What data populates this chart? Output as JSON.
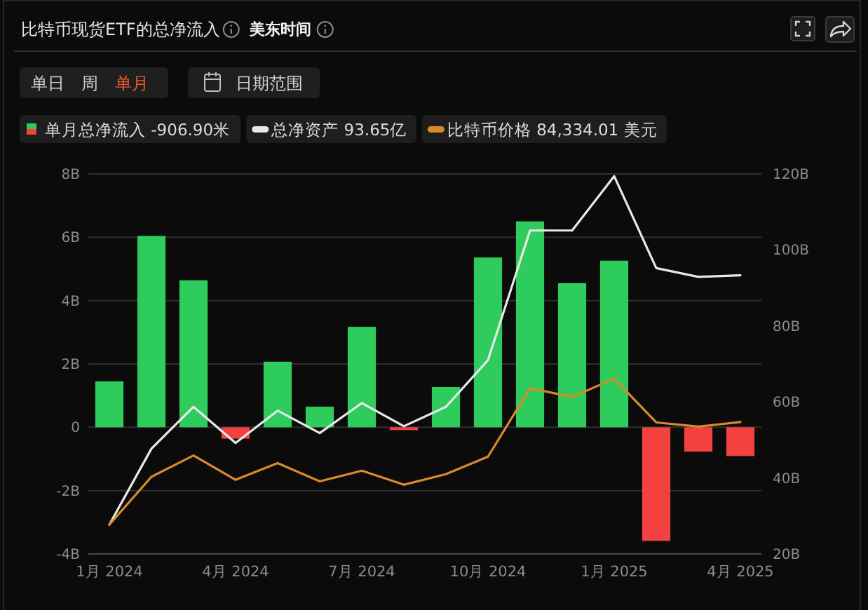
{
  "chart_data": {
    "type": "bar",
    "title": "比特币现货ETF的总净流入",
    "subtitle": "美东时间",
    "annotations": [
      "单日",
      "周",
      "单月",
      "日期范围"
    ],
    "categories": [
      "1月 2024",
      null,
      null,
      "4月 2024",
      null,
      null,
      "7月 2024",
      null,
      null,
      "10月 2024",
      null,
      null,
      "1月 2025",
      null,
      null,
      "4月 2025"
    ],
    "series": [
      {
        "name": "单月总净流入 -906.90米",
        "colors": [
          "#2ecc5c",
          "#2ecc5c",
          "#2ecc5c",
          "#f2413f",
          "#2ecc5c",
          "#2ecc5c",
          "#2ecc5c",
          "#f2413f",
          "#2ecc5c",
          "#2ecc5c",
          "#2ecc5c",
          "#2ecc5c",
          "#2ecc5c",
          "#f2413f",
          "#f2413f",
          "#f2413f"
        ],
        "values": [
          1.45,
          6.04,
          4.64,
          -0.36,
          2.07,
          0.65,
          3.17,
          -0.09,
          1.27,
          5.36,
          6.5,
          4.55,
          5.26,
          -3.59,
          -0.77,
          -0.91
        ]
      },
      {
        "name": "总净资产 93.65亿",
        "type": "line",
        "axis": "y2",
        "color": "#e8e8e8",
        "values": [
          27.7,
          47.7,
          58.7,
          49.2,
          57.7,
          51.8,
          59.7,
          53.6,
          58.7,
          71,
          105.1,
          105.1,
          119.4,
          95.2,
          92.9,
          93.3
        ]
      },
      {
        "name": "比特币价格 84,334.01 美元",
        "type": "line",
        "axis": "y2",
        "color": "#d98a2b",
        "values": [
          27.7,
          40.3,
          45.9,
          39.5,
          43.9,
          39.1,
          41.9,
          38.2,
          41,
          45.6,
          63.6,
          61.3,
          66.1,
          54.6,
          53.5,
          54.7
        ]
      }
    ],
    "ylim": [
      -4,
      8
    ],
    "yticks": [
      {
        "value": -4,
        "label": "-4B"
      },
      {
        "value": -2,
        "label": "-2B"
      },
      0,
      {
        "value": 2,
        "label": "2B"
      },
      {
        "value": 4,
        "label": "4B"
      },
      {
        "value": 6,
        "label": "6B"
      },
      {
        "value": 8,
        "label": "8B"
      }
    ],
    "y2lim": [
      20,
      120
    ],
    "y2ticks": [
      {
        "value": 20,
        "label": "20B"
      },
      {
        "value": 40,
        "label": "40B"
      },
      {
        "value": 60,
        "label": "60B"
      },
      {
        "value": 80,
        "label": "80B"
      },
      {
        "value": 100,
        "label": "100B"
      },
      {
        "value": 120,
        "label": "120B"
      }
    ],
    "grid": "y",
    "legend": "top left"
  }
}
